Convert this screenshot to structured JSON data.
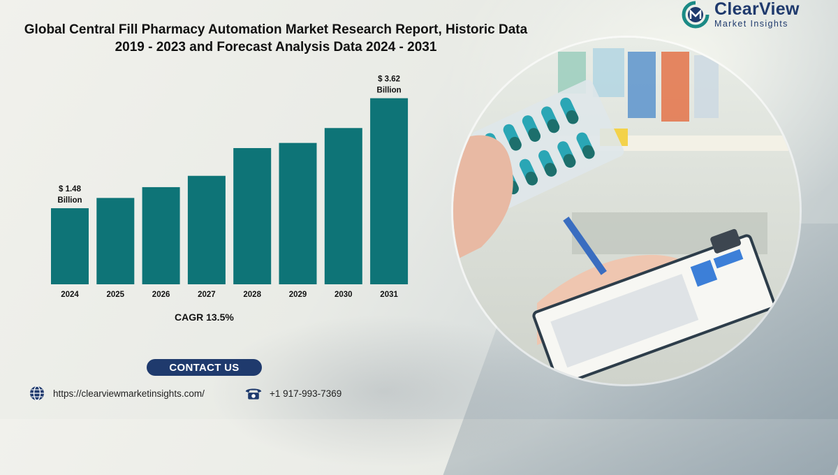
{
  "title_lines": [
    "Global Central Fill Pharmacy Automation Market Research Report, Historic Data",
    "2019 - 2023 and Forecast Analysis Data 2024 - 2031"
  ],
  "logo": {
    "name": "ClearView",
    "subtitle": "Market Insights",
    "brand_color": "#1f3a6d",
    "accent_color": "#1b8a85"
  },
  "chart_data": {
    "type": "bar",
    "categories": [
      "2024",
      "2025",
      "2026",
      "2027",
      "2028",
      "2029",
      "2030",
      "2031"
    ],
    "values": [
      1.48,
      1.68,
      1.89,
      2.11,
      2.65,
      2.75,
      3.04,
      3.62
    ],
    "value_labels": [
      {
        "index": 0,
        "lines": [
          "$ 1.48",
          "Billion"
        ]
      },
      {
        "index": 7,
        "lines": [
          "$ 3.62",
          "Billion"
        ]
      }
    ],
    "ylim": [
      0,
      3.9
    ],
    "bar_color": "#0e7477",
    "grid": false,
    "title": "",
    "xlabel": "",
    "ylabel": ""
  },
  "cagr": "CAGR 13.5%",
  "contact": {
    "button_label": "CONTACT US",
    "website": "https://clearviewmarketinsights.com/",
    "phone": "+1 917-993-7369",
    "website_icon": "globe-icon",
    "phone_icon": "telephone-icon"
  },
  "photo": {
    "description_icon": "pharmacy-photo"
  }
}
